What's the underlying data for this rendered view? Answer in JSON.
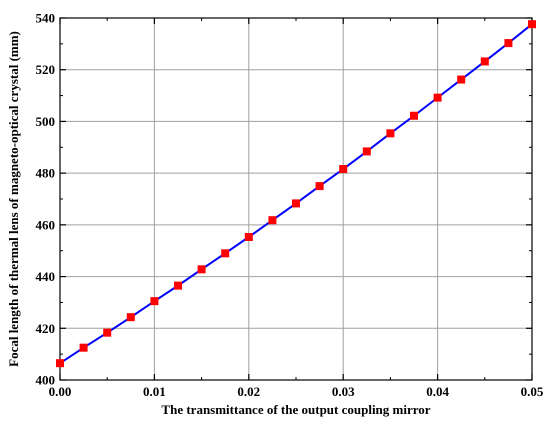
{
  "chart_data": {
    "type": "line",
    "xlabel": "The transmittance of the output coupling mirror",
    "ylabel": "Focal length of thermal lens of magneto-optical crystal (mm)",
    "xlim": [
      0.0,
      0.05
    ],
    "ylim": [
      400,
      540
    ],
    "x_ticks": [
      "0.00",
      "0.01",
      "0.02",
      "0.03",
      "0.04",
      "0.05"
    ],
    "y_ticks": [
      "400",
      "420",
      "440",
      "460",
      "480",
      "500",
      "520",
      "540"
    ],
    "grid": true,
    "line_color": "#0000ff",
    "marker_color": "#ff0000",
    "series": [
      {
        "x": [
          0.0,
          0.0025,
          0.005,
          0.0075,
          0.01,
          0.0125,
          0.015,
          0.0175,
          0.02,
          0.0225,
          0.025,
          0.0275,
          0.03,
          0.0325,
          0.035,
          0.0375,
          0.04,
          0.0425,
          0.045,
          0.0475,
          0.05
        ],
        "values": [
          406.5,
          412.5,
          418.3,
          424.3,
          430.5,
          436.5,
          442.8,
          449.0,
          455.3,
          461.8,
          468.3,
          475.0,
          481.6,
          488.4,
          495.4,
          502.2,
          509.2,
          516.2,
          523.2,
          530.3,
          537.6
        ]
      }
    ]
  }
}
